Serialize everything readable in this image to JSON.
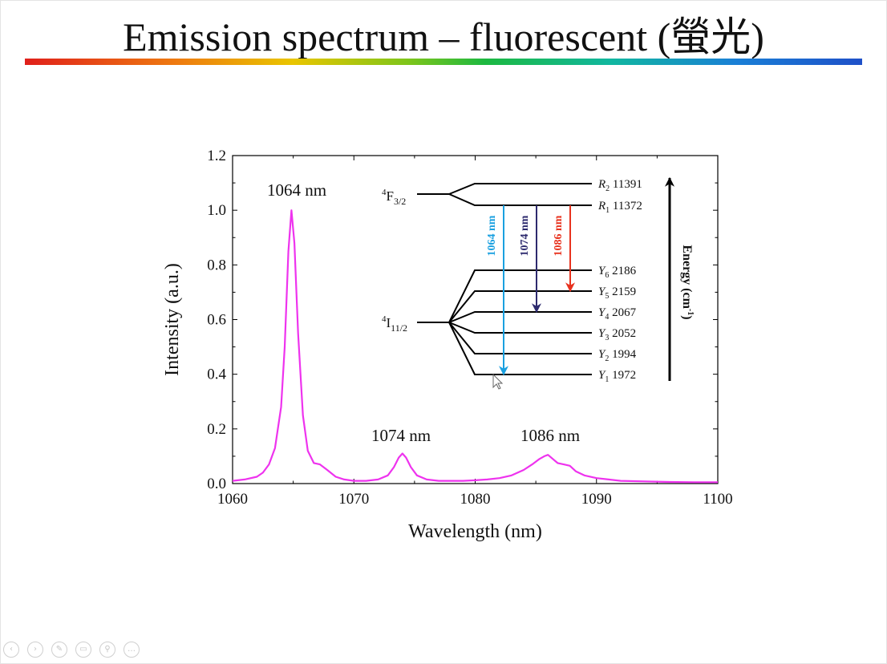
{
  "slide": {
    "title": "Emission spectrum – fluorescent (螢光)"
  },
  "chart_data": {
    "type": "line",
    "xlabel": "Wavelength (nm)",
    "ylabel": "Intensity (a.u.)",
    "xlim": [
      1060,
      1100
    ],
    "ylim": [
      0,
      1.2
    ],
    "x_ticks": [
      "1060",
      "1070",
      "1080",
      "1090",
      "1100"
    ],
    "y_ticks": [
      "0.0",
      "0.2",
      "0.4",
      "0.6",
      "0.8",
      "1.0",
      "1.2"
    ],
    "grid": false,
    "line_color": "#ee33ee",
    "series": [
      {
        "x": [
          1060,
          1061,
          1062,
          1062.5,
          1063,
          1063.5,
          1064,
          1064.3,
          1064.6,
          1064.85,
          1065.1,
          1065.4,
          1065.8,
          1066.2,
          1066.7,
          1067.2,
          1067.8,
          1068.5,
          1069.2,
          1070,
          1071,
          1072,
          1072.8,
          1073.3,
          1073.7,
          1074,
          1074.3,
          1074.7,
          1075.2,
          1076,
          1077,
          1078,
          1079,
          1080,
          1081,
          1082,
          1083,
          1084,
          1084.7,
          1085.3,
          1085.7,
          1086,
          1086.4,
          1086.8,
          1087.3,
          1087.8,
          1088.3,
          1089,
          1090,
          1091,
          1092,
          1094,
          1096,
          1098,
          1100
        ],
        "y": [
          0.01,
          0.015,
          0.025,
          0.04,
          0.07,
          0.13,
          0.28,
          0.5,
          0.85,
          1.0,
          0.88,
          0.55,
          0.25,
          0.12,
          0.075,
          0.07,
          0.05,
          0.025,
          0.015,
          0.01,
          0.01,
          0.015,
          0.03,
          0.06,
          0.095,
          0.11,
          0.095,
          0.06,
          0.03,
          0.015,
          0.01,
          0.01,
          0.01,
          0.012,
          0.015,
          0.02,
          0.03,
          0.05,
          0.07,
          0.09,
          0.1,
          0.105,
          0.09,
          0.075,
          0.07,
          0.065,
          0.045,
          0.03,
          0.02,
          0.015,
          0.01,
          0.008,
          0.006,
          0.005,
          0.005
        ]
      }
    ],
    "annotations": [
      {
        "text": "1064 nm",
        "x": 1064.85,
        "y": 1.0
      },
      {
        "text": "1074 nm",
        "x": 1074,
        "y": 0.11
      },
      {
        "text": "1086 nm",
        "x": 1086,
        "y": 0.105
      }
    ]
  },
  "diagram": {
    "upper_manifold": {
      "label": "F",
      "superscript": "4",
      "subscript": "3/2"
    },
    "lower_manifold": {
      "label": "I",
      "superscript": "4",
      "subscript": "11/2"
    },
    "upper_levels": [
      {
        "name": "R",
        "sub": "2",
        "energy": "11391"
      },
      {
        "name": "R",
        "sub": "1",
        "energy": "11372"
      }
    ],
    "lower_levels": [
      {
        "name": "Y",
        "sub": "6",
        "energy": "2186"
      },
      {
        "name": "Y",
        "sub": "5",
        "energy": "2159"
      },
      {
        "name": "Y",
        "sub": "4",
        "energy": "2067"
      },
      {
        "name": "Y",
        "sub": "3",
        "energy": "2052"
      },
      {
        "name": "Y",
        "sub": "2",
        "energy": "1994"
      },
      {
        "name": "Y",
        "sub": "1",
        "energy": "1972"
      }
    ],
    "transitions": [
      {
        "label": "1064 nm",
        "color": "#1aa0e0",
        "to_level": "Y1"
      },
      {
        "label": "1074 nm",
        "color": "#2d2a6e",
        "to_level": "Y4"
      },
      {
        "label": "1086 nm",
        "color": "#e8321e",
        "to_level": "Y5"
      }
    ],
    "energy_axis_label": "Energy (cm",
    "energy_axis_superscript": "-1",
    "energy_axis_close": ")"
  },
  "nav_icons": [
    "previous-icon",
    "next-icon",
    "pen-icon",
    "slides-icon",
    "zoom-icon",
    "more-icon"
  ]
}
